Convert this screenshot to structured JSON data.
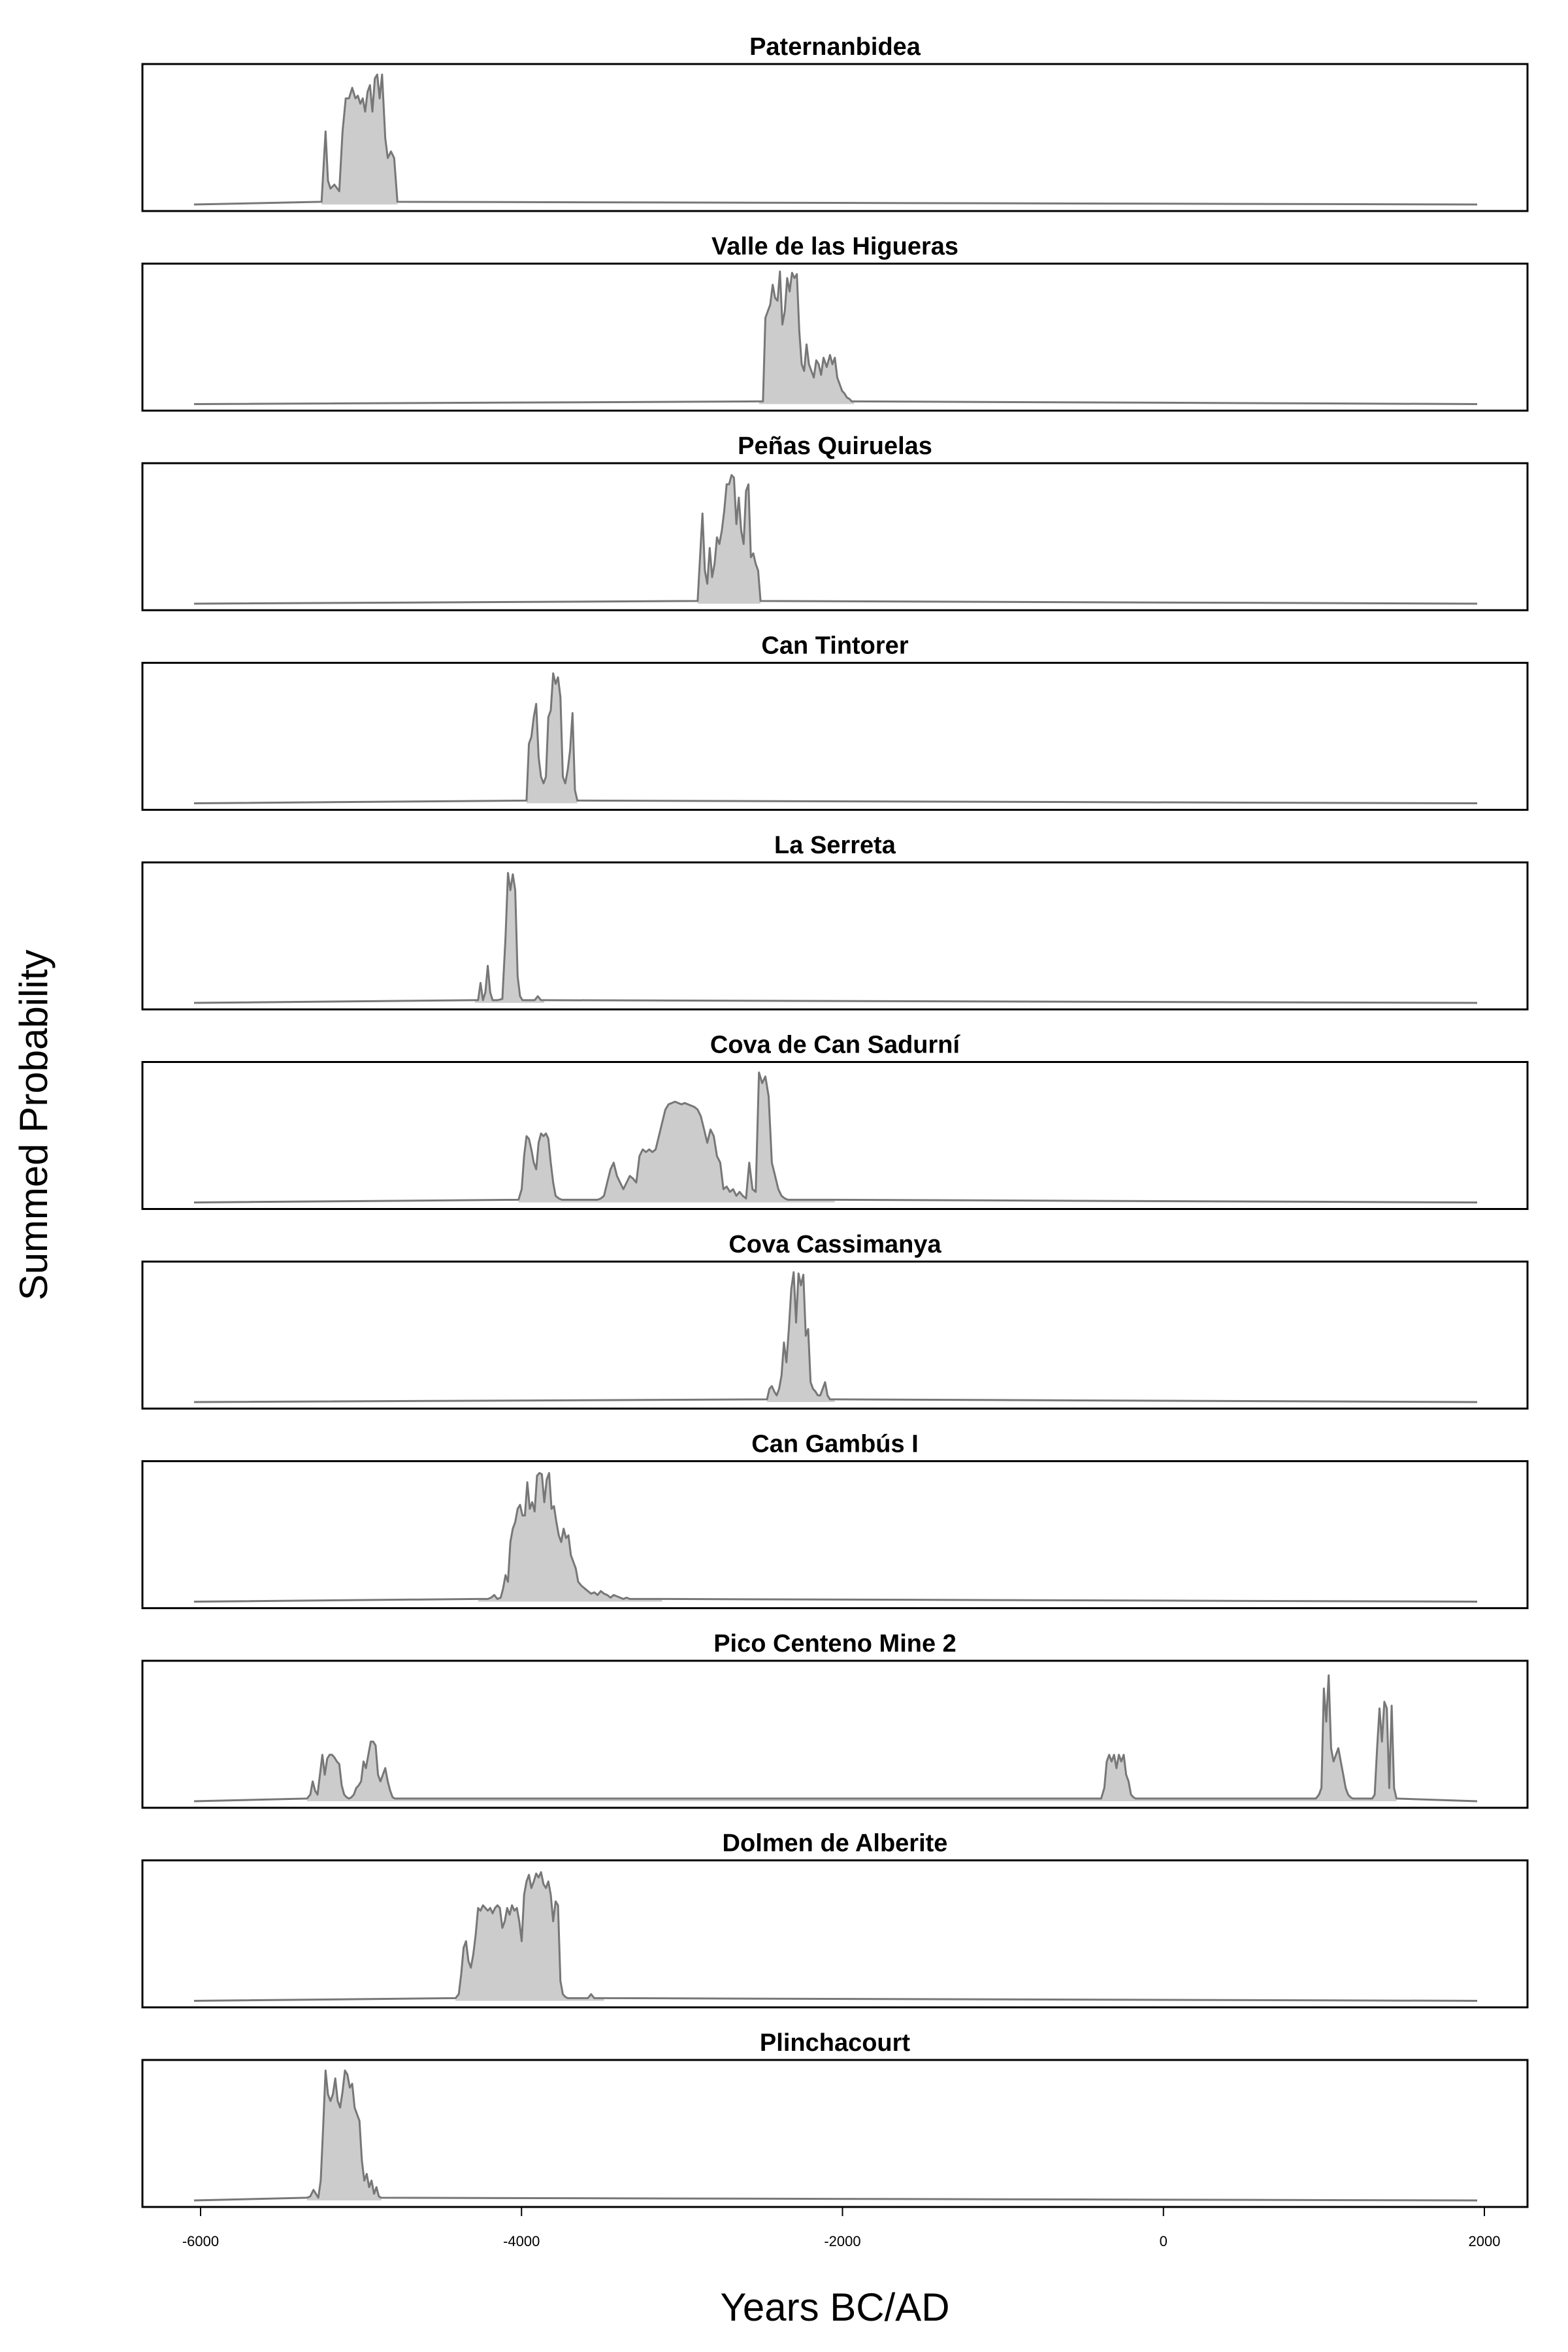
{
  "chart_data": {
    "type": "area",
    "ylabel": "Summed Probability",
    "xlabel": "Years BC/AD",
    "xlim": [
      -6000,
      1950
    ],
    "xticks": [
      -6000,
      -4000,
      -2000,
      0,
      2000
    ],
    "xtick_labels": [
      "-6000",
      "-4000",
      "-2000",
      "0",
      "2000"
    ],
    "colors": {
      "fill": "#cccccc",
      "line": "#777777",
      "frame": "#000000"
    },
    "grid": false,
    "panels": [
      {
        "title": "Paternanbidea",
        "x": [
          -5210,
          -5185,
          -5170,
          -5155,
          -5130,
          -5100,
          -5080,
          -5060,
          -5040,
          -5020,
          -5000,
          -4985,
          -4970,
          -4955,
          -4940,
          -4925,
          -4910,
          -4895,
          -4880,
          -4865,
          -4850,
          -4835,
          -4815,
          -4800,
          -4780,
          -4760,
          -4740
        ],
        "y": [
          0.02,
          0.55,
          0.18,
          0.12,
          0.15,
          0.1,
          0.55,
          0.8,
          0.8,
          0.88,
          0.8,
          0.82,
          0.76,
          0.8,
          0.7,
          0.85,
          0.9,
          0.7,
          0.95,
          0.98,
          0.8,
          0.98,
          0.5,
          0.35,
          0.4,
          0.35,
          0.02
        ]
      },
      {
        "title": "Valle de las Higueras",
        "x": [
          -2500,
          -2475,
          -2460,
          -2445,
          -2430,
          -2415,
          -2400,
          -2385,
          -2370,
          -2355,
          -2340,
          -2325,
          -2310,
          -2295,
          -2280,
          -2265,
          -2250,
          -2235,
          -2220,
          -2205,
          -2190,
          -2175,
          -2160,
          -2145,
          -2130,
          -2115,
          -2100,
          -2080,
          -2060,
          -2045,
          -2030,
          -2015,
          -2000,
          -1985,
          -1970,
          -1955,
          -1940,
          -1925,
          -1910
        ],
        "y": [
          0.02,
          0.02,
          0.65,
          0.7,
          0.75,
          0.9,
          0.8,
          0.78,
          1.0,
          0.6,
          0.7,
          0.95,
          0.85,
          0.99,
          0.95,
          0.98,
          0.55,
          0.3,
          0.25,
          0.45,
          0.3,
          0.25,
          0.2,
          0.33,
          0.3,
          0.22,
          0.35,
          0.28,
          0.37,
          0.3,
          0.35,
          0.2,
          0.15,
          0.1,
          0.08,
          0.05,
          0.04,
          0.02,
          0.02
        ]
      },
      {
        "title": "Peñas Quiruelas",
        "x": [
          -2880,
          -2865,
          -2850,
          -2835,
          -2820,
          -2805,
          -2790,
          -2775,
          -2760,
          -2745,
          -2730,
          -2715,
          -2700,
          -2685,
          -2670,
          -2655,
          -2640,
          -2625,
          -2610,
          -2595,
          -2580,
          -2565,
          -2550,
          -2535,
          -2520,
          -2505,
          -2490
        ],
        "y": [
          0.02,
          0.35,
          0.68,
          0.25,
          0.15,
          0.42,
          0.2,
          0.3,
          0.5,
          0.45,
          0.55,
          0.7,
          0.9,
          0.9,
          0.97,
          0.95,
          0.6,
          0.8,
          0.55,
          0.45,
          0.85,
          0.9,
          0.35,
          0.38,
          0.3,
          0.25,
          0.02
        ]
      },
      {
        "title": "Can Tintorer",
        "x": [
          -3940,
          -3925,
          -3910,
          -3895,
          -3880,
          -3865,
          -3850,
          -3835,
          -3820,
          -3805,
          -3790,
          -3775,
          -3760,
          -3745,
          -3730,
          -3715,
          -3700,
          -3685,
          -3670,
          -3655,
          -3640,
          -3625
        ],
        "y": [
          0.02,
          0.45,
          0.5,
          0.65,
          0.75,
          0.35,
          0.2,
          0.15,
          0.2,
          0.65,
          0.7,
          0.98,
          0.9,
          0.95,
          0.8,
          0.2,
          0.15,
          0.25,
          0.4,
          0.68,
          0.1,
          0.02
        ]
      },
      {
        "title": "La Serreta",
        "x": [
          -4260,
          -4240,
          -4225,
          -4210,
          -4195,
          -4180,
          -4165,
          -4150,
          -4120,
          -4090,
          -4070,
          -4055,
          -4040,
          -4025,
          -4010,
          -3995,
          -3980,
          -3965,
          -3950,
          -3920,
          -3890,
          -3870,
          -3850,
          -3830
        ],
        "y": [
          0.02,
          0.02,
          0.15,
          0.02,
          0.08,
          0.28,
          0.08,
          0.02,
          0.02,
          0.03,
          0.5,
          0.98,
          0.85,
          0.97,
          0.85,
          0.2,
          0.05,
          0.02,
          0.02,
          0.02,
          0.02,
          0.05,
          0.02,
          0.02
        ]
      },
      {
        "title": "Cova de Can Sadurní",
        "x": [
          -3990,
          -3970,
          -3955,
          -3940,
          -3925,
          -3910,
          -3895,
          -3880,
          -3865,
          -3850,
          -3835,
          -3820,
          -3805,
          -3790,
          -3775,
          -3760,
          -3740,
          -3720,
          -3700,
          -3680,
          -3660,
          -3640,
          -3620,
          -3600,
          -3580,
          -3560,
          -3540,
          -3520,
          -3500,
          -3480,
          -3460,
          -3440,
          -3420,
          -3400,
          -3380,
          -3360,
          -3340,
          -3320,
          -3300,
          -3280,
          -3260,
          -3240,
          -3220,
          -3200,
          -3180,
          -3160,
          -3140,
          -3120,
          -3100,
          -3080,
          -3060,
          -3040,
          -3020,
          -3000,
          -2980,
          -2960,
          -2940,
          -2920,
          -2900,
          -2880,
          -2860,
          -2840,
          -2820,
          -2800,
          -2780,
          -2760,
          -2740,
          -2720,
          -2700,
          -2680,
          -2660,
          -2640,
          -2620,
          -2600,
          -2580,
          -2560,
          -2540,
          -2520,
          -2500,
          -2480,
          -2460,
          -2440,
          -2420,
          -2400,
          -2380,
          -2360,
          -2340,
          -2320,
          -2300,
          -2285,
          -2270,
          -2255,
          -2240,
          -2225,
          -2210,
          -2195,
          -2180,
          -2165,
          -2150,
          -2135,
          -2120,
          -2105,
          -2090,
          -2075,
          -2060,
          -2045,
          -2030
        ],
        "y": [
          0.02,
          0.1,
          0.35,
          0.5,
          0.48,
          0.4,
          0.3,
          0.25,
          0.45,
          0.52,
          0.5,
          0.52,
          0.48,
          0.3,
          0.15,
          0.05,
          0.03,
          0.02,
          0.02,
          0.02,
          0.02,
          0.02,
          0.02,
          0.02,
          0.02,
          0.02,
          0.02,
          0.02,
          0.02,
          0.03,
          0.05,
          0.15,
          0.25,
          0.3,
          0.2,
          0.15,
          0.1,
          0.15,
          0.2,
          0.18,
          0.15,
          0.35,
          0.4,
          0.38,
          0.4,
          0.38,
          0.4,
          0.5,
          0.6,
          0.7,
          0.74,
          0.75,
          0.76,
          0.75,
          0.74,
          0.75,
          0.74,
          0.73,
          0.72,
          0.7,
          0.65,
          0.55,
          0.45,
          0.55,
          0.5,
          0.35,
          0.3,
          0.1,
          0.12,
          0.08,
          0.1,
          0.05,
          0.08,
          0.05,
          0.03,
          0.3,
          0.1,
          0.08,
          0.98,
          0.9,
          0.95,
          0.8,
          0.3,
          0.2,
          0.1,
          0.05,
          0.03,
          0.02,
          0.02,
          0.02,
          0.02,
          0.02,
          0.02,
          0.02,
          0.02,
          0.02,
          0.02,
          0.02,
          0.02,
          0.02,
          0.02,
          0.02,
          0.02,
          0.02,
          0.02,
          0.02,
          0.02
        ]
      },
      {
        "title": "Cova Cassimanya",
        "x": [
          -2450,
          -2435,
          -2420,
          -2405,
          -2390,
          -2375,
          -2360,
          -2345,
          -2330,
          -2315,
          -2300,
          -2285,
          -2270,
          -2255,
          -2240,
          -2225,
          -2210,
          -2195,
          -2180,
          -2165,
          -2150,
          -2135,
          -2120,
          -2105,
          -2090,
          -2075,
          -2060,
          -2045,
          -2030
        ],
        "y": [
          0.02,
          0.1,
          0.12,
          0.08,
          0.05,
          0.1,
          0.2,
          0.45,
          0.3,
          0.55,
          0.85,
          0.98,
          0.6,
          0.97,
          0.88,
          0.96,
          0.5,
          0.55,
          0.15,
          0.1,
          0.08,
          0.05,
          0.05,
          0.1,
          0.15,
          0.05,
          0.02,
          0.02,
          0.02
        ]
      },
      {
        "title": "Can Gambús I",
        "x": [
          -4240,
          -4220,
          -4200,
          -4180,
          -4160,
          -4140,
          -4120,
          -4100,
          -4085,
          -4070,
          -4055,
          -4040,
          -4025,
          -4010,
          -3995,
          -3980,
          -3965,
          -3950,
          -3935,
          -3920,
          -3905,
          -3890,
          -3875,
          -3860,
          -3845,
          -3830,
          -3815,
          -3800,
          -3785,
          -3770,
          -3755,
          -3740,
          -3725,
          -3710,
          -3695,
          -3680,
          -3665,
          -3650,
          -3635,
          -3620,
          -3600,
          -3580,
          -3560,
          -3540,
          -3520,
          -3500,
          -3480,
          -3460,
          -3440,
          -3420,
          -3400,
          -3380,
          -3360,
          -3340,
          -3320,
          -3300,
          -3280,
          -3260,
          -3240,
          -3220,
          -3200,
          -3180,
          -3160,
          -3140,
          -3120,
          -3100
        ],
        "y": [
          0.02,
          0.02,
          0.02,
          0.02,
          0.03,
          0.05,
          0.02,
          0.03,
          0.1,
          0.2,
          0.15,
          0.45,
          0.55,
          0.6,
          0.7,
          0.73,
          0.65,
          0.65,
          0.9,
          0.7,
          0.75,
          0.68,
          0.95,
          0.97,
          0.96,
          0.75,
          0.92,
          0.97,
          0.7,
          0.72,
          0.6,
          0.5,
          0.45,
          0.55,
          0.48,
          0.5,
          0.35,
          0.3,
          0.25,
          0.15,
          0.12,
          0.1,
          0.08,
          0.06,
          0.07,
          0.05,
          0.08,
          0.06,
          0.05,
          0.03,
          0.05,
          0.04,
          0.03,
          0.02,
          0.03,
          0.02,
          0.02,
          0.02,
          0.02,
          0.02,
          0.02,
          0.02,
          0.02,
          0.02,
          0.02,
          0.02
        ]
      },
      {
        "title": "Pico Centeno Mine 2",
        "x": [
          -5300,
          -5280,
          -5265,
          -5250,
          -5235,
          -5220,
          -5205,
          -5190,
          -5175,
          -5160,
          -5145,
          -5130,
          -5115,
          -5100,
          -5085,
          -5070,
          -5055,
          -5040,
          -5025,
          -5010,
          -4995,
          -4980,
          -4965,
          -4950,
          -4935,
          -4920,
          -4905,
          -4890,
          -4875,
          -4860,
          -4845,
          -4830,
          -4815,
          -4800,
          -4785,
          -4770,
          -4755,
          -4740,
          -4725,
          -4710,
          -4695,
          -4680,
          -380,
          -360,
          -345,
          -330,
          -315,
          -300,
          -285,
          -270,
          -255,
          -240,
          -225,
          -210,
          -195,
          -180,
          -165,
          -150,
          -135,
          -120,
          -105,
          -90,
          950,
          970,
          985,
          1000,
          1015,
          1030,
          1045,
          1060,
          1075,
          1090,
          1105,
          1120,
          1135,
          1150,
          1165,
          1180,
          1300,
          1315,
          1330,
          1345,
          1360,
          1375,
          1390,
          1405,
          1420,
          1435,
          1450
        ],
        "y": [
          0.02,
          0.05,
          0.15,
          0.08,
          0.05,
          0.2,
          0.35,
          0.2,
          0.32,
          0.35,
          0.35,
          0.33,
          0.3,
          0.28,
          0.12,
          0.05,
          0.03,
          0.02,
          0.03,
          0.05,
          0.1,
          0.12,
          0.15,
          0.3,
          0.25,
          0.35,
          0.45,
          0.45,
          0.42,
          0.2,
          0.15,
          0.2,
          0.25,
          0.15,
          0.08,
          0.03,
          0.02,
          0.02,
          0.02,
          0.02,
          0.02,
          0.02,
          0.02,
          0.1,
          0.3,
          0.35,
          0.3,
          0.35,
          0.25,
          0.35,
          0.3,
          0.35,
          0.2,
          0.15,
          0.05,
          0.03,
          0.02,
          0.02,
          0.02,
          0.02,
          0.02,
          0.02,
          0.02,
          0.05,
          0.1,
          0.85,
          0.6,
          0.95,
          0.4,
          0.3,
          0.35,
          0.4,
          0.3,
          0.2,
          0.1,
          0.05,
          0.03,
          0.02,
          0.02,
          0.05,
          0.4,
          0.7,
          0.45,
          0.75,
          0.7,
          0.1,
          0.72,
          0.1,
          0.02
        ]
      },
      {
        "title": "Dolmen de Alberite",
        "x": [
          -4380,
          -4360,
          -4345,
          -4330,
          -4315,
          -4300,
          -4285,
          -4270,
          -4255,
          -4240,
          -4225,
          -4210,
          -4195,
          -4180,
          -4165,
          -4150,
          -4135,
          -4120,
          -4105,
          -4090,
          -4075,
          -4060,
          -4045,
          -4030,
          -4015,
          -4000,
          -3985,
          -3970,
          -3955,
          -3940,
          -3925,
          -3910,
          -3895,
          -3880,
          -3865,
          -3850,
          -3835,
          -3820,
          -3805,
          -3790,
          -3775,
          -3760,
          -3745,
          -3730,
          -3715,
          -3700,
          -3685,
          -3670,
          -3655,
          -3640,
          -3620,
          -3600,
          -3580,
          -3560,
          -3540,
          -3520,
          -3500,
          -3480,
          -3460
        ],
        "y": [
          0.02,
          0.05,
          0.2,
          0.4,
          0.45,
          0.3,
          0.25,
          0.35,
          0.5,
          0.7,
          0.68,
          0.72,
          0.7,
          0.68,
          0.7,
          0.66,
          0.7,
          0.72,
          0.7,
          0.55,
          0.6,
          0.7,
          0.65,
          0.72,
          0.68,
          0.7,
          0.6,
          0.45,
          0.8,
          0.9,
          0.95,
          0.85,
          0.9,
          0.96,
          0.93,
          0.97,
          0.88,
          0.85,
          0.9,
          0.8,
          0.6,
          0.75,
          0.72,
          0.15,
          0.05,
          0.03,
          0.02,
          0.02,
          0.02,
          0.02,
          0.02,
          0.02,
          0.02,
          0.02,
          0.05,
          0.02,
          0.02,
          0.02,
          0.02
        ]
      },
      {
        "title": "Plinchacourt",
        "x": [
          -5300,
          -5280,
          -5260,
          -5245,
          -5230,
          -5215,
          -5200,
          -5185,
          -5170,
          -5155,
          -5140,
          -5125,
          -5110,
          -5095,
          -5080,
          -5065,
          -5050,
          -5035,
          -5020,
          -5005,
          -4990,
          -4975,
          -4960,
          -4945,
          -4930,
          -4915,
          -4900,
          -4885,
          -4870,
          -4855,
          -4840
        ],
        "y": [
          0.02,
          0.03,
          0.08,
          0.05,
          0.02,
          0.15,
          0.55,
          0.98,
          0.8,
          0.75,
          0.8,
          0.92,
          0.75,
          0.7,
          0.82,
          0.98,
          0.95,
          0.85,
          0.88,
          0.7,
          0.65,
          0.6,
          0.3,
          0.15,
          0.2,
          0.1,
          0.15,
          0.05,
          0.1,
          0.03,
          0.02
        ]
      }
    ]
  }
}
